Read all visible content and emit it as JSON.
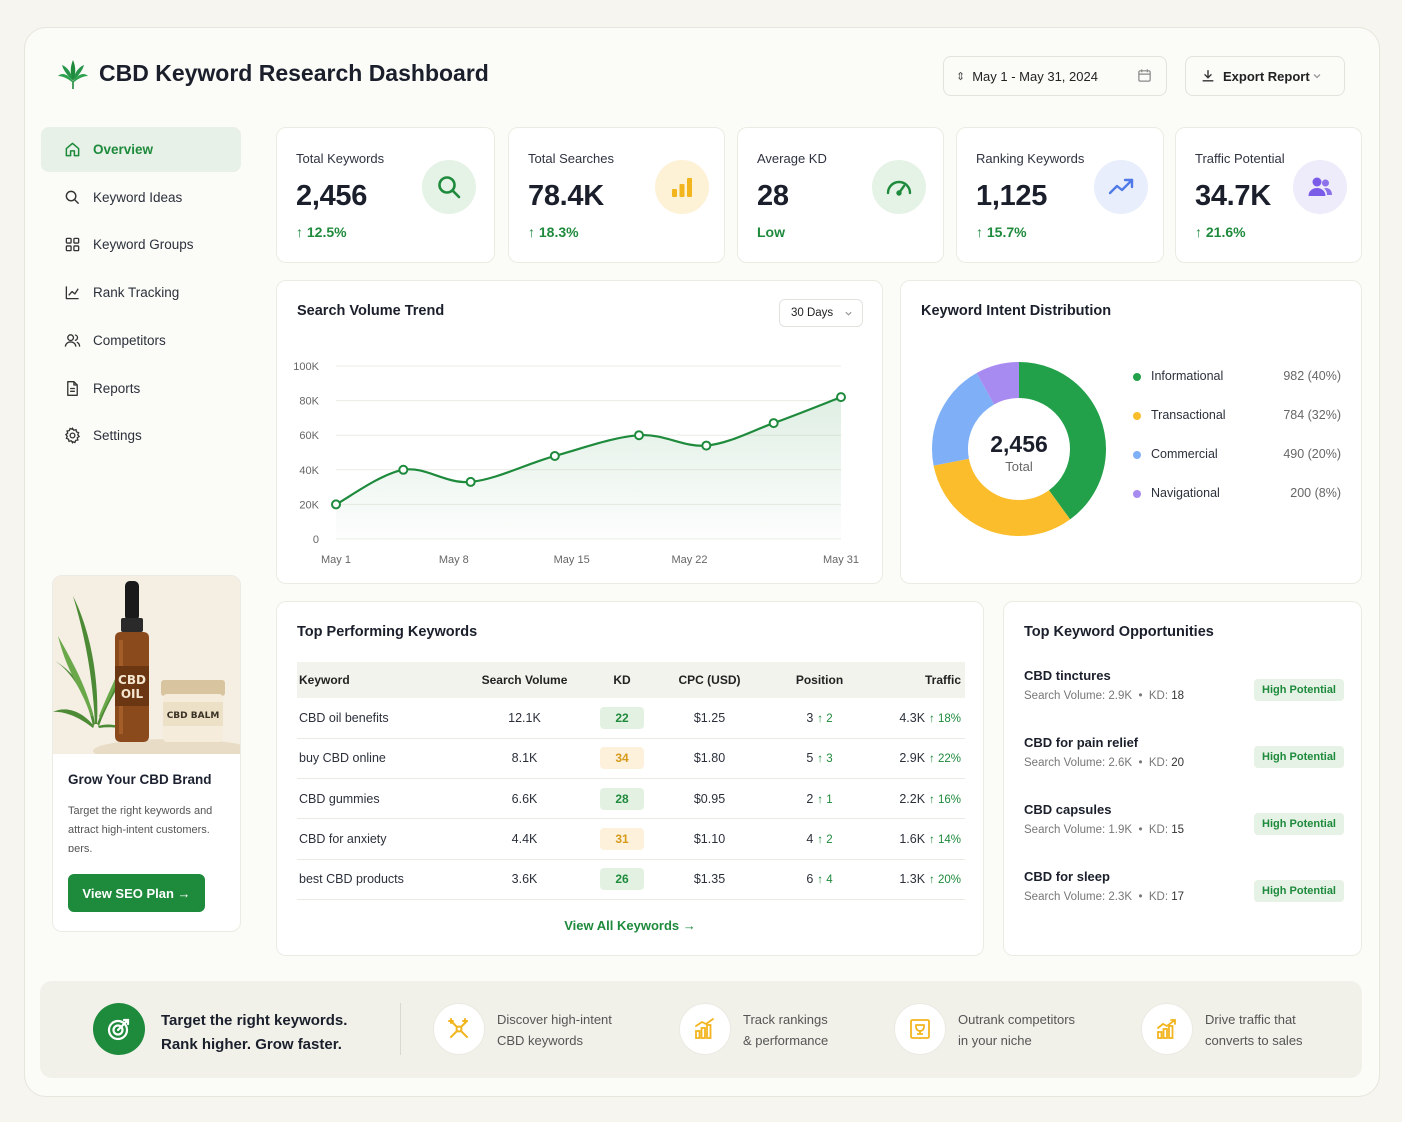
{
  "header": {
    "title": "CBD Keyword Research Dashboard",
    "date_range": "May 1 - May 31, 2024",
    "export_label": "Export Report"
  },
  "sidebar": {
    "items": [
      {
        "label": "Overview",
        "icon": "home-icon"
      },
      {
        "label": "Keyword Ideas",
        "icon": "search-icon"
      },
      {
        "label": "Keyword Groups",
        "icon": "grid-icon"
      },
      {
        "label": "Rank Tracking",
        "icon": "line-chart-icon"
      },
      {
        "label": "Competitors",
        "icon": "users-icon"
      },
      {
        "label": "Reports",
        "icon": "document-icon"
      },
      {
        "label": "Settings",
        "icon": "gear-icon"
      }
    ],
    "promo": {
      "oil_label_1": "CBD",
      "oil_label_2": "OIL",
      "balm_label": "CBD BALM",
      "title": "Grow Your CBD Brand",
      "text": "Target the right keywords and attract high-intent customers. ɒers.",
      "button": "View SEO Plan →"
    }
  },
  "stats": [
    {
      "label": "Total Keywords",
      "value": "2,456",
      "change": "↑ 12.5%",
      "icon": "search-icon",
      "accent": "#1e8a3c"
    },
    {
      "label": "Total Searches",
      "value": "78.4K",
      "change": "↑ 18.3%",
      "icon": "bar-chart-icon",
      "accent": "#f2b51e"
    },
    {
      "label": "Average KD",
      "value": "28",
      "change": "Low",
      "icon": "gauge-icon",
      "accent": "#1e8a3c"
    },
    {
      "label": "Ranking Keywords",
      "value": "1,125",
      "change": "↑ 15.7%",
      "icon": "trend-up-icon",
      "accent": "#4f7ae8"
    },
    {
      "label": "Traffic Potential",
      "value": "34.7K",
      "change": "↑ 21.6%",
      "icon": "users-icon",
      "accent": "#7b5ce8"
    }
  ],
  "trend": {
    "title": "Search Volume Trend",
    "range": "30 Days"
  },
  "chart_data": [
    {
      "type": "line",
      "title": "Search Volume Trend",
      "x_ticks": [
        "May 1",
        "May 8",
        "May 15",
        "May 22",
        "May 31"
      ],
      "y_ticks": [
        "100K",
        "80K",
        "60K",
        "40K",
        "20K",
        "0"
      ],
      "ylim": [
        0,
        100000
      ],
      "x": [
        1,
        5,
        9,
        14,
        19,
        23,
        27,
        31
      ],
      "series": [
        {
          "values": [
            20000,
            40000,
            33000,
            48000,
            60000,
            54000,
            67000,
            82000
          ]
        }
      ],
      "grid": true,
      "area_fill": true
    },
    {
      "type": "pie",
      "title": "Keyword Intent Distribution",
      "center_value": "2,456",
      "center_label": "Total",
      "categories": [
        "Informational",
        "Transactional",
        "Commercial",
        "Navigational"
      ],
      "values": [
        982,
        784,
        490,
        200
      ],
      "labels": [
        "982 (40%)",
        "784 (32%)",
        "490 (20%)",
        "200 (8%)"
      ],
      "colors": [
        "#22a04a",
        "#fbbd2b",
        "#7fb0f7",
        "#a88bf0"
      ],
      "legend": "right"
    }
  ],
  "keywords": {
    "title": "Top Performing Keywords",
    "columns": [
      "Keyword",
      "Search Volume",
      "KD",
      "CPC (USD)",
      "Position",
      "Traffic"
    ],
    "rows": [
      {
        "keyword": "CBD oil benefits",
        "volume": "12.1K",
        "kd": "22",
        "kd_level": "green",
        "cpc": "$1.25",
        "pos": "3",
        "pos_change": "↑ 2",
        "traffic": "4.3K",
        "traffic_change": "↑ 18%"
      },
      {
        "keyword": "buy CBD online",
        "volume": "8.1K",
        "kd": "34",
        "kd_level": "amber",
        "cpc": "$1.80",
        "pos": "5",
        "pos_change": "↑ 3",
        "traffic": "2.9K",
        "traffic_change": "↑ 22%"
      },
      {
        "keyword": "CBD gummies",
        "volume": "6.6K",
        "kd": "28",
        "kd_level": "green",
        "cpc": "$0.95",
        "pos": "2",
        "pos_change": "↑ 1",
        "traffic": "2.2K",
        "traffic_change": "↑ 16%"
      },
      {
        "keyword": "CBD for anxiety",
        "volume": "4.4K",
        "kd": "31",
        "kd_level": "amber",
        "cpc": "$1.10",
        "pos": "4",
        "pos_change": "↑ 2",
        "traffic": "1.6K",
        "traffic_change": "↑ 14%"
      },
      {
        "keyword": "best CBD products",
        "volume": "3.6K",
        "kd": "26",
        "kd_level": "green",
        "cpc": "$1.35",
        "pos": "6",
        "pos_change": "↑ 4",
        "traffic": "1.3K",
        "traffic_change": "↑ 20%"
      }
    ],
    "view_all": "View All Keywords →"
  },
  "opportunities": {
    "title": "Top Keyword Opportunities",
    "vol_label": "Search Volume:",
    "kd_label": "KD:",
    "items": [
      {
        "name": "CBD tinctures",
        "volume": "2.9K",
        "kd": "18",
        "badge": "High Potential"
      },
      {
        "name": "CBD for pain relief",
        "volume": "2.6K",
        "kd": "20",
        "badge": "High Potential"
      },
      {
        "name": "CBD capsules",
        "volume": "1.9K",
        "kd": "15",
        "badge": "High Potential"
      },
      {
        "name": "CBD for sleep",
        "volume": "2.3K",
        "kd": "17",
        "badge": "High Potential"
      }
    ]
  },
  "banner": {
    "line1": "Target the right keywords.",
    "line2": "Rank higher. Grow faster.",
    "features": [
      {
        "l1": "Discover high-intent",
        "l2": "CBD keywords",
        "icon": "target-cross-icon"
      },
      {
        "l1": "Track rankings",
        "l2": "& performance",
        "icon": "bar-chart-icon"
      },
      {
        "l1": "Outrank competitors",
        "l2": "in your niche",
        "icon": "trophy-frame-icon"
      },
      {
        "l1": "Drive traffic that",
        "l2": "converts to sales",
        "icon": "growth-chart-icon"
      }
    ]
  }
}
